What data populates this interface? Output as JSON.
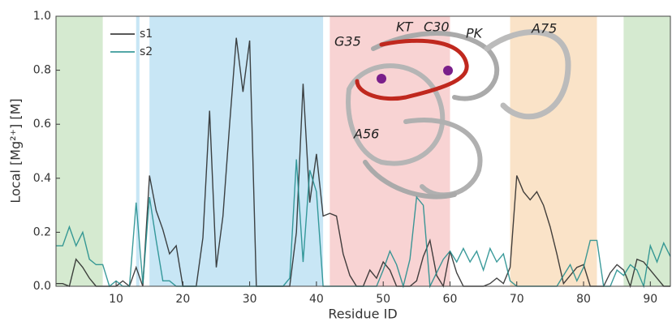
{
  "chart_data": {
    "type": "line",
    "x_label": "Residue ID",
    "y_label": "Local [Mg²⁺] [M]",
    "x": [
      1,
      2,
      3,
      4,
      5,
      6,
      7,
      8,
      9,
      10,
      11,
      12,
      13,
      14,
      15,
      16,
      17,
      18,
      19,
      20,
      21,
      22,
      23,
      24,
      25,
      26,
      27,
      28,
      29,
      30,
      31,
      32,
      33,
      34,
      35,
      36,
      37,
      38,
      39,
      40,
      41,
      42,
      43,
      44,
      45,
      46,
      47,
      48,
      49,
      50,
      51,
      52,
      53,
      54,
      55,
      56,
      57,
      58,
      59,
      60,
      61,
      62,
      63,
      64,
      65,
      66,
      67,
      68,
      69,
      70,
      71,
      72,
      73,
      74,
      75,
      76,
      77,
      78,
      79,
      80,
      81,
      82,
      83,
      84,
      85,
      86,
      87,
      88,
      89,
      90,
      91,
      92,
      93
    ],
    "series": [
      {
        "name": "s1",
        "color": "#222222",
        "values": [
          0.01,
          0.01,
          0.0,
          0.1,
          0.07,
          0.03,
          0.0,
          0.0,
          0.0,
          0.0,
          0.02,
          0.0,
          0.07,
          0.0,
          0.41,
          0.28,
          0.21,
          0.12,
          0.15,
          0.0,
          0.0,
          0.0,
          0.18,
          0.65,
          0.07,
          0.26,
          0.6,
          0.92,
          0.72,
          0.91,
          0.0,
          0.0,
          0.0,
          0.0,
          0.0,
          0.0,
          0.2,
          0.75,
          0.31,
          0.49,
          0.26,
          0.27,
          0.26,
          0.12,
          0.04,
          0.0,
          0.0,
          0.06,
          0.03,
          0.09,
          0.06,
          0.0,
          0.0,
          0.0,
          0.02,
          0.11,
          0.17,
          0.04,
          0.0,
          0.13,
          0.05,
          0.0,
          0.0,
          0.0,
          0.0,
          0.01,
          0.03,
          0.01,
          0.07,
          0.41,
          0.35,
          0.32,
          0.35,
          0.3,
          0.22,
          0.12,
          0.01,
          0.04,
          0.07,
          0.08,
          0.0,
          0.0,
          0.0,
          0.05,
          0.08,
          0.06,
          0.0,
          0.1,
          0.09,
          0.06,
          0.03,
          0.0,
          0.0
        ]
      },
      {
        "name": "s2",
        "color": "#1a8a8a",
        "values": [
          0.15,
          0.15,
          0.22,
          0.15,
          0.2,
          0.1,
          0.08,
          0.08,
          0.0,
          0.02,
          0.0,
          0.0,
          0.31,
          0.01,
          0.33,
          0.17,
          0.02,
          0.02,
          0.0,
          0.0,
          0.0,
          0.0,
          0.0,
          0.0,
          0.0,
          0.0,
          0.0,
          0.0,
          0.0,
          0.0,
          0.0,
          0.0,
          0.0,
          0.0,
          0.0,
          0.03,
          0.47,
          0.09,
          0.43,
          0.35,
          0.0,
          0.0,
          0.0,
          0.0,
          0.0,
          0.0,
          0.0,
          0.0,
          0.0,
          0.06,
          0.13,
          0.08,
          0.0,
          0.1,
          0.33,
          0.3,
          0.0,
          0.05,
          0.1,
          0.13,
          0.09,
          0.14,
          0.09,
          0.13,
          0.06,
          0.14,
          0.09,
          0.12,
          0.02,
          0.0,
          0.0,
          0.0,
          0.0,
          0.0,
          0.0,
          0.0,
          0.04,
          0.08,
          0.02,
          0.07,
          0.17,
          0.17,
          0.0,
          0.0,
          0.06,
          0.04,
          0.08,
          0.06,
          0.0,
          0.15,
          0.09,
          0.16,
          0.11
        ]
      }
    ],
    "regions": [
      {
        "start": 1,
        "end": 8,
        "color": "#d5ead0"
      },
      {
        "start": 13,
        "end": 13.5,
        "color": "#c8e6f5"
      },
      {
        "start": 15,
        "end": 41,
        "color": "#c8e6f5"
      },
      {
        "start": 42,
        "end": 60,
        "color": "#f8d3d3"
      },
      {
        "start": 69,
        "end": 82,
        "color": "#fae3c8"
      },
      {
        "start": 86,
        "end": 93,
        "color": "#d5ead0"
      }
    ],
    "annotations": [
      "G35",
      "KT",
      "C30",
      "PK",
      "A75",
      "A56"
    ],
    "xlim": [
      1,
      93
    ],
    "ylim": [
      0,
      1
    ],
    "xticks": [
      10,
      20,
      30,
      40,
      50,
      60,
      70,
      80,
      90
    ],
    "yticks": [
      {
        "value": 0,
        "label": "0.0"
      },
      0.2,
      0.4,
      0.6,
      0.8,
      {
        "value": 1,
        "label": "1.0"
      }
    ],
    "legend": "upper-left"
  }
}
